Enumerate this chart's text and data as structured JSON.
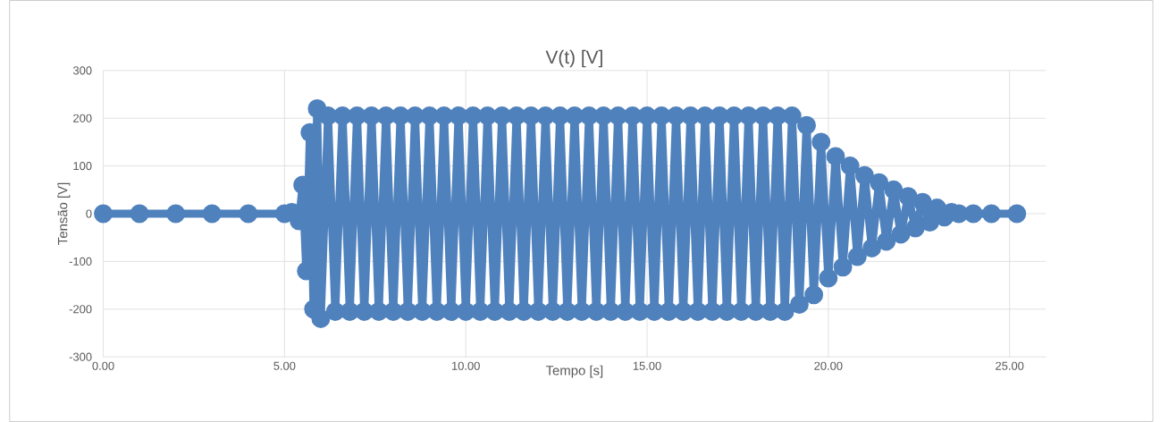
{
  "chart_data": {
    "type": "line",
    "title": "V(t) [V]",
    "xlabel": "Tempo [s]",
    "ylabel": "Tensão [V]",
    "marker": "circle",
    "line_style": "solid",
    "grid": true,
    "xlim": [
      0,
      26
    ],
    "ylim": [
      -300,
      300
    ],
    "xticks": [
      {
        "value": 0,
        "label": "0.00"
      },
      {
        "value": 5,
        "label": "5.00"
      },
      {
        "value": 10,
        "label": "10.00"
      },
      {
        "value": 15,
        "label": "15.00"
      },
      {
        "value": 20,
        "label": "20.00"
      },
      {
        "value": 25,
        "label": "25.00"
      }
    ],
    "yticks": [
      -300,
      -200,
      -100,
      0,
      100,
      200,
      300
    ],
    "series": [
      {
        "color": "#4f81bd",
        "x": [
          0,
          1,
          2,
          3,
          4,
          5.0,
          5.2,
          5.4,
          5.5,
          5.6,
          5.7,
          5.8,
          5.9,
          6.0,
          6.2,
          6.4,
          6.6,
          6.8,
          7.0,
          7.2,
          7.4,
          7.6,
          7.8,
          8.0,
          8.2,
          8.4,
          8.6,
          8.8,
          9.0,
          9.2,
          9.4,
          9.6,
          9.8,
          10.0,
          10.2,
          10.4,
          10.6,
          10.8,
          11.0,
          11.2,
          11.4,
          11.6,
          11.8,
          12.0,
          12.2,
          12.4,
          12.6,
          12.8,
          13.0,
          13.2,
          13.4,
          13.6,
          13.8,
          14.0,
          14.2,
          14.4,
          14.6,
          14.8,
          15.0,
          15.2,
          15.4,
          15.6,
          15.8,
          16.0,
          16.2,
          16.4,
          16.6,
          16.8,
          17.0,
          17.2,
          17.4,
          17.6,
          17.8,
          18.0,
          18.2,
          18.4,
          18.6,
          18.8,
          19.0,
          19.2,
          19.4,
          19.6,
          19.8,
          20.0,
          20.2,
          20.4,
          20.6,
          20.8,
          21.0,
          21.2,
          21.4,
          21.6,
          21.8,
          22.0,
          22.2,
          22.4,
          22.6,
          22.8,
          23.0,
          23.2,
          23.4,
          23.6,
          24,
          24.5,
          25.2
        ],
        "values": [
          0,
          0,
          0,
          0,
          0,
          0,
          3,
          -15,
          60,
          -120,
          170,
          -200,
          220,
          -220,
          205,
          -205,
          205,
          -205,
          205,
          -205,
          205,
          -205,
          205,
          -205,
          205,
          -205,
          205,
          -205,
          205,
          -205,
          205,
          -205,
          205,
          -205,
          205,
          -205,
          205,
          -205,
          205,
          -205,
          205,
          -205,
          205,
          -205,
          205,
          -205,
          205,
          -205,
          205,
          -205,
          205,
          -205,
          205,
          -205,
          205,
          -205,
          205,
          -205,
          205,
          -205,
          205,
          -205,
          205,
          -205,
          205,
          -205,
          205,
          -205,
          205,
          -205,
          205,
          -205,
          205,
          -205,
          205,
          -205,
          205,
          -205,
          205,
          -190,
          185,
          -170,
          150,
          -135,
          120,
          -112,
          100,
          -90,
          80,
          -72,
          65,
          -58,
          50,
          -43,
          36,
          -30,
          24,
          -18,
          12,
          -7,
          3,
          0,
          0,
          0,
          0
        ]
      }
    ]
  }
}
